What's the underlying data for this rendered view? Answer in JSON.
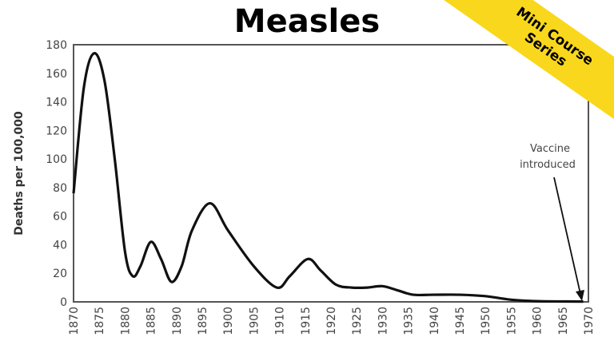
{
  "chart_data": {
    "type": "line",
    "title": "Measles",
    "xlabel": "",
    "ylabel": "Deaths per 100,000",
    "xlim": [
      1870,
      1970
    ],
    "ylim": [
      0,
      180
    ],
    "grid": false,
    "xticks": [
      1870,
      1875,
      1880,
      1885,
      1890,
      1895,
      1900,
      1905,
      1910,
      1915,
      1920,
      1925,
      1930,
      1935,
      1940,
      1945,
      1950,
      1955,
      1960,
      1965,
      1970
    ],
    "yticks": [
      0,
      20,
      40,
      60,
      80,
      100,
      120,
      140,
      160,
      180
    ],
    "series": [
      {
        "x": [
          1870,
          1872,
          1874,
          1876,
          1878,
          1880,
          1881.5,
          1883,
          1885,
          1887,
          1889,
          1891,
          1893,
          1896.5,
          1900,
          1905,
          1909.5,
          1912,
          1915.5,
          1918,
          1921,
          1924,
          1927,
          1930,
          1933,
          1936,
          1940,
          1945,
          1950,
          1955,
          1960,
          1965,
          1969
        ],
        "y": [
          76,
          150,
          174,
          155,
          100,
          35,
          18,
          25,
          42,
          30,
          14,
          25,
          50,
          69,
          50,
          25,
          10,
          18,
          30,
          22,
          12,
          10,
          10,
          11,
          8,
          5,
          5,
          5,
          4,
          1.5,
          0.5,
          0.3,
          0.2
        ]
      }
    ],
    "annotations": [
      {
        "text_line1": "Vaccine",
        "text_line2": "introduced",
        "x": 1969,
        "y": 0
      }
    ]
  },
  "badge": {
    "line1": "Mini Course",
    "line2": "Series",
    "color": "#f9d71c"
  }
}
